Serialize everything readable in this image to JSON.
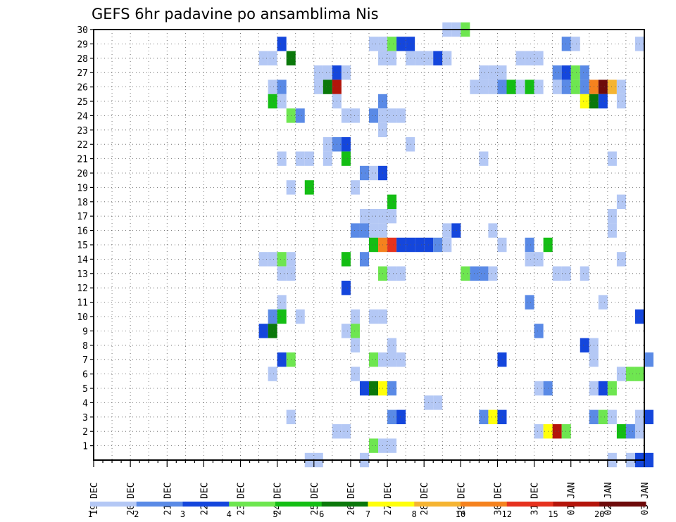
{
  "chart_data": {
    "type": "heatmap",
    "title": "GEFS 6hr padavine po ansamblima Nis",
    "x_labels": [
      "19 DEC",
      "20 DEC",
      "21 DEC",
      "22 DEC",
      "23 DEC",
      "24 DEC",
      "25 DEC",
      "26 DEC",
      "27 DEC",
      "28 DEC",
      "29 DEC",
      "30 DEC",
      "31 DEC",
      "01 JAN",
      "02 JAN",
      "03 JAN"
    ],
    "y_labels": [
      "1",
      "2",
      "3",
      "4",
      "5",
      "6",
      "7",
      "8",
      "9",
      "10",
      "11",
      "12",
      "13",
      "14",
      "15",
      "16",
      "17",
      "18",
      "19",
      "20",
      "21",
      "22",
      "23",
      "24",
      "25",
      "26",
      "27",
      "28",
      "29",
      "30"
    ],
    "x_steps_per_day": 4,
    "x_total_steps": 60,
    "ylim": [
      0,
      30
    ],
    "grid": true,
    "legend": {
      "position": "bottom",
      "labels": [
        "1",
        "2",
        "3",
        "4",
        "5",
        "6",
        "7",
        "8",
        "10",
        "12",
        "15",
        "20"
      ],
      "colors": [
        "#b4c8f5",
        "#5a8ae6",
        "#1446dc",
        "#6ee650",
        "#14be14",
        "#0a780a",
        "#ffff0a",
        "#f5b432",
        "#f5821e",
        "#e6321e",
        "#b4140a",
        "#6e0a0a"
      ]
    },
    "cells": [
      {
        "member": 30,
        "step": 38,
        "level": 0
      },
      {
        "member": 30,
        "step": 39,
        "level": 0
      },
      {
        "member": 30,
        "step": 40,
        "level": 3
      },
      {
        "member": 29,
        "step": 20,
        "level": 2
      },
      {
        "member": 29,
        "step": 30,
        "level": 0
      },
      {
        "member": 29,
        "step": 31,
        "level": 0
      },
      {
        "member": 29,
        "step": 32,
        "level": 3
      },
      {
        "member": 29,
        "step": 33,
        "level": 2
      },
      {
        "member": 29,
        "step": 34,
        "level": 2
      },
      {
        "member": 29,
        "step": 51,
        "level": 1
      },
      {
        "member": 29,
        "step": 52,
        "level": 0
      },
      {
        "member": 29,
        "step": 59,
        "level": 0
      },
      {
        "member": 28,
        "step": 18,
        "level": 0
      },
      {
        "member": 28,
        "step": 19,
        "level": 0
      },
      {
        "member": 28,
        "step": 21,
        "level": 5
      },
      {
        "member": 28,
        "step": 31,
        "level": 0
      },
      {
        "member": 28,
        "step": 32,
        "level": 0
      },
      {
        "member": 28,
        "step": 34,
        "level": 0
      },
      {
        "member": 28,
        "step": 35,
        "level": 0
      },
      {
        "member": 28,
        "step": 36,
        "level": 0
      },
      {
        "member": 28,
        "step": 37,
        "level": 2
      },
      {
        "member": 28,
        "step": 38,
        "level": 0
      },
      {
        "member": 28,
        "step": 46,
        "level": 0
      },
      {
        "member": 28,
        "step": 47,
        "level": 0
      },
      {
        "member": 28,
        "step": 48,
        "level": 0
      },
      {
        "member": 27,
        "step": 24,
        "level": 0
      },
      {
        "member": 27,
        "step": 25,
        "level": 0
      },
      {
        "member": 27,
        "step": 26,
        "level": 2
      },
      {
        "member": 27,
        "step": 27,
        "level": 0
      },
      {
        "member": 27,
        "step": 42,
        "level": 0
      },
      {
        "member": 27,
        "step": 43,
        "level": 0
      },
      {
        "member": 27,
        "step": 44,
        "level": 0
      },
      {
        "member": 27,
        "step": 50,
        "level": 1
      },
      {
        "member": 27,
        "step": 51,
        "level": 2
      },
      {
        "member": 27,
        "step": 52,
        "level": 3
      },
      {
        "member": 27,
        "step": 53,
        "level": 1
      },
      {
        "member": 26,
        "step": 19,
        "level": 0
      },
      {
        "member": 26,
        "step": 20,
        "level": 1
      },
      {
        "member": 26,
        "step": 24,
        "level": 0
      },
      {
        "member": 26,
        "step": 25,
        "level": 5
      },
      {
        "member": 26,
        "step": 26,
        "level": 10
      },
      {
        "member": 26,
        "step": 41,
        "level": 0
      },
      {
        "member": 26,
        "step": 42,
        "level": 0
      },
      {
        "member": 26,
        "step": 43,
        "level": 0
      },
      {
        "member": 26,
        "step": 44,
        "level": 1
      },
      {
        "member": 26,
        "step": 45,
        "level": 4
      },
      {
        "member": 26,
        "step": 46,
        "level": 0
      },
      {
        "member": 26,
        "step": 47,
        "level": 4
      },
      {
        "member": 26,
        "step": 48,
        "level": 0
      },
      {
        "member": 26,
        "step": 50,
        "level": 0
      },
      {
        "member": 26,
        "step": 51,
        "level": 1
      },
      {
        "member": 26,
        "step": 52,
        "level": 3
      },
      {
        "member": 26,
        "step": 53,
        "level": 1
      },
      {
        "member": 26,
        "step": 54,
        "level": 8
      },
      {
        "member": 26,
        "step": 55,
        "level": 11
      },
      {
        "member": 26,
        "step": 56,
        "level": 7
      },
      {
        "member": 26,
        "step": 57,
        "level": 0
      },
      {
        "member": 25,
        "step": 19,
        "level": 4
      },
      {
        "member": 25,
        "step": 20,
        "level": 0
      },
      {
        "member": 25,
        "step": 26,
        "level": 0
      },
      {
        "member": 25,
        "step": 31,
        "level": 1
      },
      {
        "member": 25,
        "step": 53,
        "level": 6
      },
      {
        "member": 25,
        "step": 54,
        "level": 5
      },
      {
        "member": 25,
        "step": 55,
        "level": 2
      },
      {
        "member": 25,
        "step": 57,
        "level": 0
      },
      {
        "member": 24,
        "step": 21,
        "level": 3
      },
      {
        "member": 24,
        "step": 22,
        "level": 1
      },
      {
        "member": 24,
        "step": 27,
        "level": 0
      },
      {
        "member": 24,
        "step": 28,
        "level": 0
      },
      {
        "member": 24,
        "step": 30,
        "level": 1
      },
      {
        "member": 24,
        "step": 31,
        "level": 0
      },
      {
        "member": 24,
        "step": 32,
        "level": 0
      },
      {
        "member": 24,
        "step": 33,
        "level": 0
      },
      {
        "member": 23,
        "step": 31,
        "level": 0
      },
      {
        "member": 22,
        "step": 25,
        "level": 0
      },
      {
        "member": 22,
        "step": 26,
        "level": 1
      },
      {
        "member": 22,
        "step": 27,
        "level": 2
      },
      {
        "member": 22,
        "step": 34,
        "level": 0
      },
      {
        "member": 21,
        "step": 20,
        "level": 0
      },
      {
        "member": 21,
        "step": 22,
        "level": 0
      },
      {
        "member": 21,
        "step": 23,
        "level": 0
      },
      {
        "member": 21,
        "step": 25,
        "level": 0
      },
      {
        "member": 21,
        "step": 27,
        "level": 4
      },
      {
        "member": 21,
        "step": 42,
        "level": 0
      },
      {
        "member": 21,
        "step": 56,
        "level": 0
      },
      {
        "member": 20,
        "step": 29,
        "level": 1
      },
      {
        "member": 20,
        "step": 30,
        "level": 0
      },
      {
        "member": 20,
        "step": 31,
        "level": 2
      },
      {
        "member": 19,
        "step": 21,
        "level": 0
      },
      {
        "member": 19,
        "step": 23,
        "level": 4
      },
      {
        "member": 19,
        "step": 28,
        "level": 0
      },
      {
        "member": 18,
        "step": 32,
        "level": 4
      },
      {
        "member": 18,
        "step": 57,
        "level": 0
      },
      {
        "member": 17,
        "step": 29,
        "level": 0
      },
      {
        "member": 17,
        "step": 30,
        "level": 0
      },
      {
        "member": 17,
        "step": 31,
        "level": 0
      },
      {
        "member": 17,
        "step": 32,
        "level": 0
      },
      {
        "member": 17,
        "step": 56,
        "level": 0
      },
      {
        "member": 16,
        "step": 28,
        "level": 1
      },
      {
        "member": 16,
        "step": 29,
        "level": 1
      },
      {
        "member": 16,
        "step": 30,
        "level": 0
      },
      {
        "member": 16,
        "step": 31,
        "level": 0
      },
      {
        "member": 16,
        "step": 38,
        "level": 0
      },
      {
        "member": 16,
        "step": 39,
        "level": 2
      },
      {
        "member": 16,
        "step": 43,
        "level": 0
      },
      {
        "member": 16,
        "step": 56,
        "level": 0
      },
      {
        "member": 15,
        "step": 30,
        "level": 4
      },
      {
        "member": 15,
        "step": 31,
        "level": 8
      },
      {
        "member": 15,
        "step": 32,
        "level": 9
      },
      {
        "member": 15,
        "step": 33,
        "level": 2
      },
      {
        "member": 15,
        "step": 34,
        "level": 2
      },
      {
        "member": 15,
        "step": 35,
        "level": 2
      },
      {
        "member": 15,
        "step": 36,
        "level": 2
      },
      {
        "member": 15,
        "step": 37,
        "level": 1
      },
      {
        "member": 15,
        "step": 38,
        "level": 0
      },
      {
        "member": 15,
        "step": 44,
        "level": 0
      },
      {
        "member": 15,
        "step": 47,
        "level": 1
      },
      {
        "member": 15,
        "step": 49,
        "level": 4
      },
      {
        "member": 14,
        "step": 18,
        "level": 0
      },
      {
        "member": 14,
        "step": 19,
        "level": 0
      },
      {
        "member": 14,
        "step": 20,
        "level": 3
      },
      {
        "member": 14,
        "step": 21,
        "level": 0
      },
      {
        "member": 14,
        "step": 27,
        "level": 4
      },
      {
        "member": 14,
        "step": 29,
        "level": 1
      },
      {
        "member": 14,
        "step": 47,
        "level": 0
      },
      {
        "member": 14,
        "step": 48,
        "level": 0
      },
      {
        "member": 14,
        "step": 57,
        "level": 0
      },
      {
        "member": 13,
        "step": 20,
        "level": 0
      },
      {
        "member": 13,
        "step": 21,
        "level": 0
      },
      {
        "member": 13,
        "step": 31,
        "level": 3
      },
      {
        "member": 13,
        "step": 32,
        "level": 0
      },
      {
        "member": 13,
        "step": 33,
        "level": 0
      },
      {
        "member": 13,
        "step": 40,
        "level": 3
      },
      {
        "member": 13,
        "step": 41,
        "level": 1
      },
      {
        "member": 13,
        "step": 42,
        "level": 1
      },
      {
        "member": 13,
        "step": 43,
        "level": 0
      },
      {
        "member": 13,
        "step": 50,
        "level": 0
      },
      {
        "member": 13,
        "step": 51,
        "level": 0
      },
      {
        "member": 13,
        "step": 53,
        "level": 0
      },
      {
        "member": 12,
        "step": 27,
        "level": 2
      },
      {
        "member": 11,
        "step": 20,
        "level": 0
      },
      {
        "member": 11,
        "step": 47,
        "level": 1
      },
      {
        "member": 11,
        "step": 55,
        "level": 0
      },
      {
        "member": 10,
        "step": 19,
        "level": 1
      },
      {
        "member": 10,
        "step": 20,
        "level": 4
      },
      {
        "member": 10,
        "step": 22,
        "level": 0
      },
      {
        "member": 10,
        "step": 28,
        "level": 0
      },
      {
        "member": 10,
        "step": 30,
        "level": 0
      },
      {
        "member": 10,
        "step": 31,
        "level": 0
      },
      {
        "member": 10,
        "step": 59,
        "level": 2
      },
      {
        "member": 9,
        "step": 18,
        "level": 2
      },
      {
        "member": 9,
        "step": 19,
        "level": 5
      },
      {
        "member": 9,
        "step": 27,
        "level": 0
      },
      {
        "member": 9,
        "step": 28,
        "level": 3
      },
      {
        "member": 9,
        "step": 48,
        "level": 1
      },
      {
        "member": 8,
        "step": 28,
        "level": 0
      },
      {
        "member": 8,
        "step": 32,
        "level": 0
      },
      {
        "member": 8,
        "step": 53,
        "level": 2
      },
      {
        "member": 8,
        "step": 54,
        "level": 0
      },
      {
        "member": 7,
        "step": 20,
        "level": 2
      },
      {
        "member": 7,
        "step": 21,
        "level": 3
      },
      {
        "member": 7,
        "step": 30,
        "level": 3
      },
      {
        "member": 7,
        "step": 31,
        "level": 0
      },
      {
        "member": 7,
        "step": 32,
        "level": 0
      },
      {
        "member": 7,
        "step": 33,
        "level": 0
      },
      {
        "member": 7,
        "step": 44,
        "level": 2
      },
      {
        "member": 7,
        "step": 54,
        "level": 0
      },
      {
        "member": 7,
        "step": 60,
        "level": 1
      },
      {
        "member": 6,
        "step": 19,
        "level": 0
      },
      {
        "member": 6,
        "step": 28,
        "level": 0
      },
      {
        "member": 6,
        "step": 57,
        "level": 0
      },
      {
        "member": 6,
        "step": 58,
        "level": 3
      },
      {
        "member": 6,
        "step": 59,
        "level": 3
      },
      {
        "member": 5,
        "step": 29,
        "level": 2
      },
      {
        "member": 5,
        "step": 30,
        "level": 5
      },
      {
        "member": 5,
        "step": 31,
        "level": 6
      },
      {
        "member": 5,
        "step": 32,
        "level": 1
      },
      {
        "member": 5,
        "step": 48,
        "level": 0
      },
      {
        "member": 5,
        "step": 49,
        "level": 1
      },
      {
        "member": 5,
        "step": 54,
        "level": 0
      },
      {
        "member": 5,
        "step": 55,
        "level": 2
      },
      {
        "member": 5,
        "step": 56,
        "level": 3
      },
      {
        "member": 4,
        "step": 36,
        "level": 0
      },
      {
        "member": 4,
        "step": 37,
        "level": 0
      },
      {
        "member": 3,
        "step": 21,
        "level": 0
      },
      {
        "member": 3,
        "step": 32,
        "level": 1
      },
      {
        "member": 3,
        "step": 33,
        "level": 2
      },
      {
        "member": 3,
        "step": 42,
        "level": 1
      },
      {
        "member": 3,
        "step": 43,
        "level": 6
      },
      {
        "member": 3,
        "step": 44,
        "level": 2
      },
      {
        "member": 3,
        "step": 54,
        "level": 1
      },
      {
        "member": 3,
        "step": 55,
        "level": 3
      },
      {
        "member": 3,
        "step": 56,
        "level": 0
      },
      {
        "member": 3,
        "step": 59,
        "level": 0
      },
      {
        "member": 3,
        "step": 60,
        "level": 2
      },
      {
        "member": 2,
        "step": 26,
        "level": 0
      },
      {
        "member": 2,
        "step": 27,
        "level": 0
      },
      {
        "member": 2,
        "step": 48,
        "level": 0
      },
      {
        "member": 2,
        "step": 49,
        "level": 6
      },
      {
        "member": 2,
        "step": 50,
        "level": 10
      },
      {
        "member": 2,
        "step": 51,
        "level": 3
      },
      {
        "member": 2,
        "step": 57,
        "level": 4
      },
      {
        "member": 2,
        "step": 58,
        "level": 1
      },
      {
        "member": 2,
        "step": 59,
        "level": 0
      },
      {
        "member": 1,
        "step": 30,
        "level": 3
      },
      {
        "member": 1,
        "step": 31,
        "level": 0
      },
      {
        "member": 1,
        "step": 32,
        "level": 0
      },
      {
        "member": 0,
        "step": 23,
        "level": 0
      },
      {
        "member": 0,
        "step": 24,
        "level": 0
      },
      {
        "member": 0,
        "step": 29,
        "level": 0
      },
      {
        "member": 0,
        "step": 56,
        "level": 0
      },
      {
        "member": 0,
        "step": 58,
        "level": 0
      },
      {
        "member": 0,
        "step": 59,
        "level": 2
      },
      {
        "member": 0,
        "step": 60,
        "level": 2
      }
    ]
  }
}
